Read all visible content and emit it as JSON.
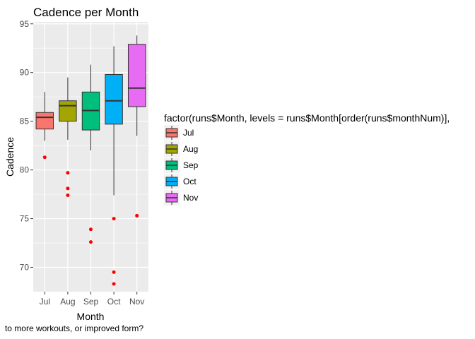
{
  "chart_data": {
    "type": "box",
    "title": "Cadence per Month",
    "xlabel": "Month",
    "ylabel": "Cadence",
    "caption": "to more workouts, or improved form?",
    "categories": [
      "Jul",
      "Aug",
      "Sep",
      "Oct",
      "Nov"
    ],
    "ylim": [
      67.5,
      95.2
    ],
    "yticks": [
      70,
      75,
      80,
      85,
      90,
      95
    ],
    "grid": true,
    "legend": {
      "title": "factor(runs$Month, levels = runs$Month[order(runs$monthNum)],",
      "position": "right",
      "entries": [
        "Jul",
        "Aug",
        "Sep",
        "Oct",
        "Nov"
      ]
    },
    "colors": [
      "#F8766D",
      "#A3A500",
      "#00BF7D",
      "#00B0F6",
      "#E76BF3"
    ],
    "outlier_color": "#FF0000",
    "boxes": [
      {
        "category": "Jul",
        "whisker_low": 83.0,
        "q1": 84.2,
        "median": 85.4,
        "q3": 85.9,
        "whisker_high": 88.0,
        "outliers": [
          81.3
        ]
      },
      {
        "category": "Aug",
        "whisker_low": 83.1,
        "q1": 85.0,
        "median": 86.6,
        "q3": 87.1,
        "whisker_high": 89.5,
        "outliers": [
          79.7,
          78.1,
          77.4
        ]
      },
      {
        "category": "Sep",
        "whisker_low": 82.0,
        "q1": 84.1,
        "median": 86.1,
        "q3": 88.0,
        "whisker_high": 90.8,
        "outliers": [
          73.9,
          72.6
        ]
      },
      {
        "category": "Oct",
        "whisker_low": 77.4,
        "q1": 84.7,
        "median": 87.1,
        "q3": 89.8,
        "whisker_high": 92.7,
        "outliers": [
          75.0,
          69.5,
          68.3
        ]
      },
      {
        "category": "Nov",
        "whisker_low": 83.5,
        "q1": 86.5,
        "median": 88.4,
        "q3": 92.9,
        "whisker_high": 93.8,
        "outliers": [
          75.3
        ]
      }
    ]
  }
}
